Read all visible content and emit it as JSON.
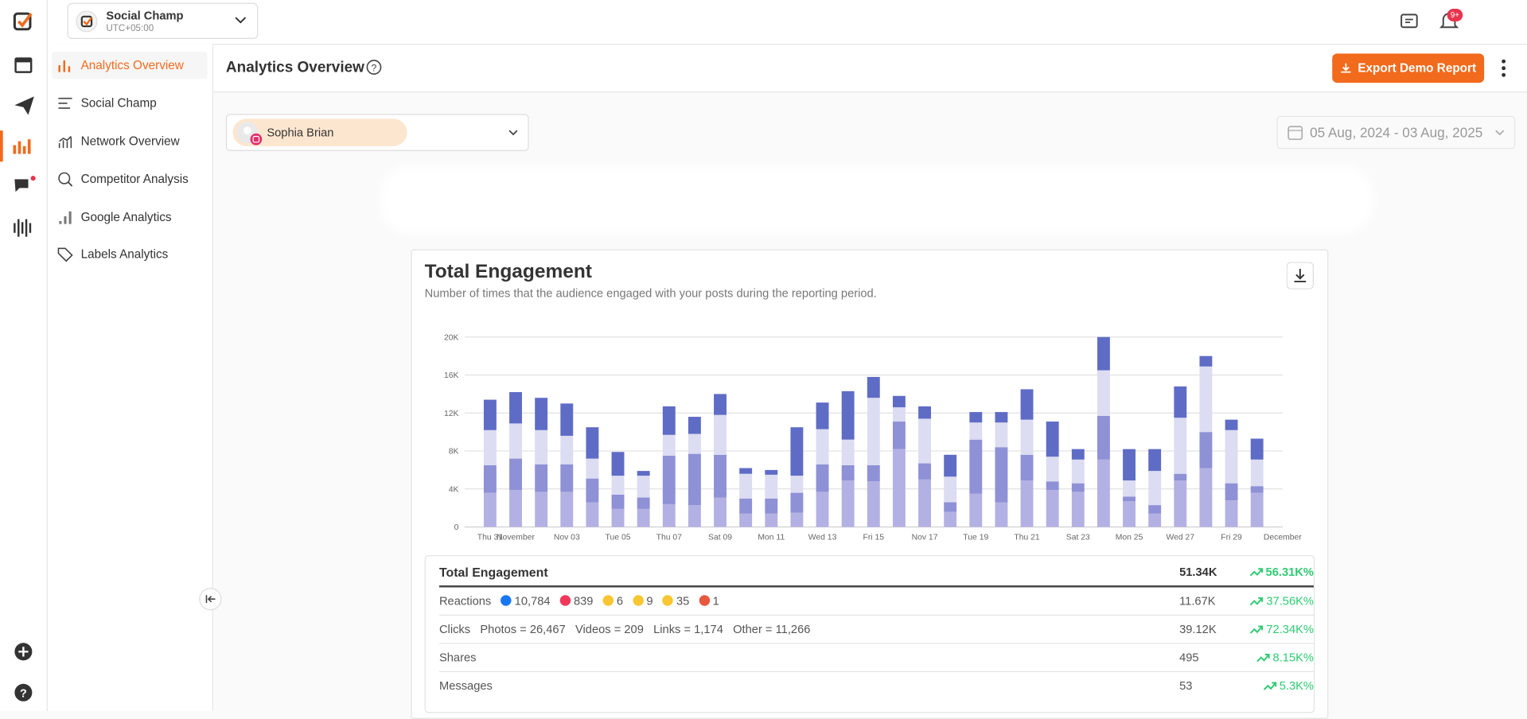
{
  "header": {
    "account_name": "Social Champ",
    "timezone": "UTC+05:00",
    "notification_badge": "9+"
  },
  "nav": [
    "Analytics Overview",
    "Social Champ",
    "Network Overview",
    "Competitor Analysis",
    "Google Analytics",
    "Labels Analytics"
  ],
  "page_title": "Analytics Overview",
  "export_button": "Export Demo Report",
  "profile": "Sophia Brian",
  "date_range": "05 Aug, 2024 - 03 Aug, 2025",
  "card": {
    "title": "Total Engagement",
    "subtitle": "Number of times that the audience engaged with your posts during the reporting period."
  },
  "chart_data": {
    "type": "stacked_bar",
    "categories": [
      "Thu 31",
      "November",
      null,
      "Nov 03",
      null,
      "Tue 05",
      null,
      "Thu 07",
      null,
      "Sat 09",
      null,
      "Mon 11",
      null,
      "Wed 13",
      null,
      "Fri 15",
      null,
      "Nov 17",
      null,
      "Tue 19",
      null,
      "Thu 21",
      null,
      "Sat 23",
      null,
      "Mon 25",
      null,
      "Wed 27",
      null,
      "Fri 29",
      null,
      "December"
    ],
    "series": [
      {
        "color": "#b3b1e3",
        "values": [
          3600,
          3900,
          3700,
          3700,
          2600,
          1900,
          1900,
          2400,
          2300,
          3100,
          1400,
          1400,
          1500,
          3700,
          4900,
          4800,
          8200,
          5000,
          1600,
          3500,
          2600,
          4900,
          3900,
          3700,
          7100,
          2700,
          1400,
          4900,
          6200,
          2800,
          3600,
          null
        ]
      },
      {
        "color": "#8e91d6",
        "values": [
          2900,
          3300,
          2900,
          2900,
          2500,
          1500,
          1200,
          5100,
          5400,
          4500,
          1600,
          1600,
          2100,
          2900,
          1600,
          1700,
          2900,
          1700,
          1000,
          5700,
          5800,
          2700,
          900,
          900,
          4600,
          500,
          900,
          700,
          3800,
          1800,
          700,
          null
        ]
      },
      {
        "color": "#dcdcf2",
        "values": [
          3700,
          3700,
          3600,
          3000,
          2100,
          2000,
          2300,
          2200,
          2100,
          4200,
          2600,
          2500,
          1800,
          3700,
          2700,
          7100,
          1500,
          4700,
          2700,
          1800,
          2600,
          3700,
          2600,
          2500,
          4800,
          1700,
          3600,
          5900,
          6900,
          5600,
          2800,
          null
        ]
      },
      {
        "color": "#5f6cc6",
        "values": [
          3200,
          3300,
          3400,
          3400,
          3300,
          2500,
          500,
          3000,
          1800,
          2200,
          600,
          500,
          5100,
          2800,
          5100,
          2200,
          1200,
          1300,
          2300,
          1100,
          1100,
          3200,
          3700,
          1100,
          3500,
          3300,
          2300,
          3300,
          1100,
          1100,
          2200,
          null
        ]
      }
    ],
    "ylim": [
      0,
      20000
    ],
    "yticks": [
      0,
      {
        "value": 4000,
        "label": "4K"
      },
      {
        "value": 8000,
        "label": "8K"
      },
      {
        "value": 12000,
        "label": "12K"
      },
      {
        "value": 16000,
        "label": "16K"
      },
      {
        "value": 20000,
        "label": "20K"
      }
    ],
    "grid": true
  },
  "summary": {
    "title": "Total Engagement",
    "total": "51.34K",
    "change": "56.31K%",
    "rows": [
      {
        "label": "Reactions",
        "details": [
          "10,784",
          "839",
          "6",
          "9",
          "35",
          "1"
        ],
        "value": "11.67K",
        "change": "37.56K%"
      },
      {
        "label": "Clicks",
        "details": [
          "Photos = 26,467",
          "Videos = 209",
          "Links = 1,174",
          "Other = 11,266"
        ],
        "value": "39.12K",
        "change": "72.34K%"
      },
      {
        "label": "Shares",
        "details": [],
        "value": "495",
        "change": "8.15K%"
      },
      {
        "label": "Messages",
        "details": [],
        "value": "53",
        "change": "5.3K%"
      }
    ]
  }
}
